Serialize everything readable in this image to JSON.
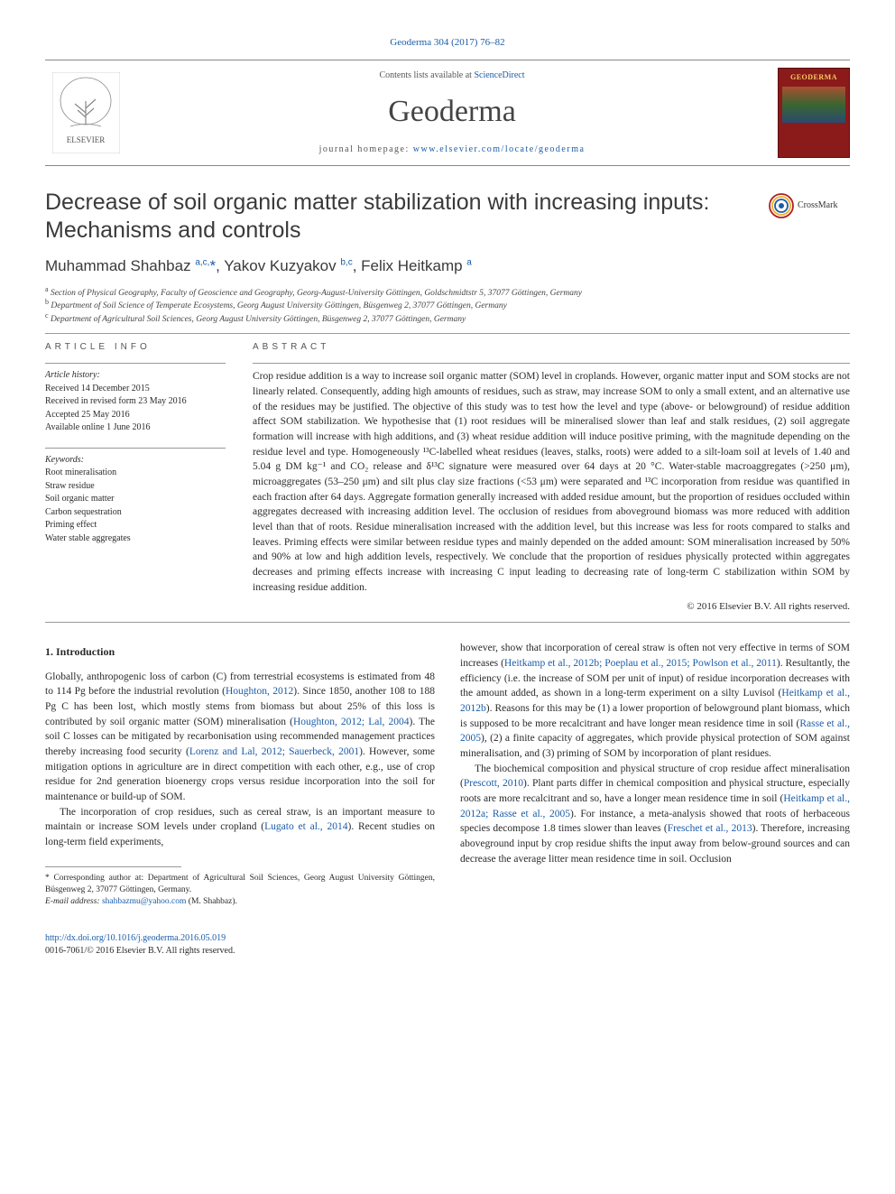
{
  "citation": "Geoderma 304 (2017) 76–82",
  "masthead": {
    "sd_prefix": "Contents lists available at ",
    "sd_link": "ScienceDirect",
    "journal": "Geoderma",
    "homepage_prefix": "journal homepage: ",
    "homepage_link": "www.elsevier.com/locate/geoderma",
    "cover_label": "GEODERMA"
  },
  "crossmark_label": "CrossMark",
  "article": {
    "title": "Decrease of soil organic matter stabilization with increasing inputs: Mechanisms and controls",
    "authors_html": "Muhammad Shahbaz <sup>a,c,</sup><span class='star'>*</span>, Yakov Kuzyakov <sup>b,c</sup>, Felix Heitkamp <sup>a</sup>",
    "affiliations": {
      "a": "Section of Physical Geography, Faculty of Geoscience and Geography, Georg-August-University Göttingen, Goldschmidtstr 5, 37077 Göttingen, Germany",
      "b": "Department of Soil Science of Temperate Ecosystems, Georg August University Göttingen, Büsgenweg 2, 37077 Göttingen, Germany",
      "c": "Department of Agricultural Soil Sciences, Georg August University Göttingen, Büsgenweg 2, 37077 Göttingen, Germany"
    }
  },
  "info": {
    "head": "ARTICLE INFO",
    "history_label": "Article history:",
    "history": [
      "Received 14 December 2015",
      "Received in revised form 23 May 2016",
      "Accepted 25 May 2016",
      "Available online 1 June 2016"
    ],
    "keywords_label": "Keywords:",
    "keywords": [
      "Root mineralisation",
      "Straw residue",
      "Soil organic matter",
      "Carbon sequestration",
      "Priming effect",
      "Water stable aggregates"
    ]
  },
  "abstract": {
    "head": "ABSTRACT",
    "text": "Crop residue addition is a way to increase soil organic matter (SOM) level in croplands. However, organic matter input and SOM stocks are not linearly related. Consequently, adding high amounts of residues, such as straw, may increase SOM to only a small extent, and an alternative use of the residues may be justified. The objective of this study was to test how the level and type (above- or belowground) of residue addition affect SOM stabilization. We hypothesise that (1) root residues will be mineralised slower than leaf and stalk residues, (2) soil aggregate formation will increase with high additions, and (3) wheat residue addition will induce positive priming, with the magnitude depending on the residue level and type. Homogeneously ¹³C-labelled wheat residues (leaves, stalks, roots) were added to a silt-loam soil at levels of 1.40 and 5.04 g DM kg⁻¹ and CO₂ release and δ¹³C signature were measured over 64 days at 20 °C. Water-stable macroaggregates (>250 μm), microaggregates (53–250 μm) and silt plus clay size fractions (<53 μm) were separated and ¹³C incorporation from residue was quantified in each fraction after 64 days. Aggregate formation generally increased with added residue amount, but the proportion of residues occluded within aggregates decreased with increasing addition level. The occlusion of residues from aboveground biomass was more reduced with addition level than that of roots. Residue mineralisation increased with the addition level, but this increase was less for roots compared to stalks and leaves. Priming effects were similar between residue types and mainly depended on the added amount: SOM mineralisation increased by 50% and 90% at low and high addition levels, respectively. We conclude that the proportion of residues physically protected within aggregates decreases and priming effects increase with increasing C input leading to decreasing rate of long-term C stabilization within SOM by increasing residue addition.",
    "copyright": "© 2016 Elsevier B.V. All rights reserved."
  },
  "body": {
    "intro_head": "1. Introduction",
    "left_paras": [
      "Globally, anthropogenic loss of carbon (C) from terrestrial ecosystems is estimated from 48 to 114 Pg before the industrial revolution (<a>Houghton, 2012</a>). Since 1850, another 108 to 188 Pg C has been lost, which mostly stems from biomass but about 25% of this loss is contributed by soil organic matter (SOM) mineralisation (<a>Houghton, 2012; Lal, 2004</a>). The soil C losses can be mitigated by recarbonisation using recommended management practices thereby increasing food security (<a>Lorenz and Lal, 2012; Sauerbeck, 2001</a>). However, some mitigation options in agriculture are in direct competition with each other, e.g., use of crop residue for 2nd generation bioenergy crops versus residue incorporation into the soil for maintenance or build-up of SOM.",
      "The incorporation of crop residues, such as cereal straw, is an important measure to maintain or increase SOM levels under cropland (<a>Lugato et al., 2014</a>). Recent studies on long-term field experiments,"
    ],
    "right_paras": [
      "however, show that incorporation of cereal straw is often not very effective in terms of SOM increases (<a>Heitkamp et al., 2012b; Poeplau et al., 2015; Powlson et al., 2011</a>). Resultantly, the efficiency (i.e. the increase of SOM per unit of input) of residue incorporation decreases with the amount added, as shown in a long-term experiment on a silty Luvisol (<a>Heitkamp et al., 2012b</a>). Reasons for this may be (1) a lower proportion of belowground plant biomass, which is supposed to be more recalcitrant and have longer mean residence time in soil (<a>Rasse et al., 2005</a>), (2) a finite capacity of aggregates, which provide physical protection of SOM against mineralisation, and (3) priming of SOM by incorporation of plant residues.",
      "The biochemical composition and physical structure of crop residue affect mineralisation (<a>Prescott, 2010</a>). Plant parts differ in chemical composition and physical structure, especially roots are more recalcitrant and so, have a longer mean residence time in soil (<a>Heitkamp et al., 2012a; Rasse et al., 2005</a>). For instance, a meta-analysis showed that roots of herbaceous species decompose 1.8 times slower than leaves (<a>Freschet et al., 2013</a>). Therefore, increasing aboveground input by crop residue shifts the input away from below-ground sources and can decrease the average litter mean residence time in soil. Occlusion"
    ]
  },
  "footnotes": {
    "corr": "* Corresponding author at: Department of Agricultural Soil Sciences, Georg August University Göttingen, Büsgenweg 2, 37077 Göttingen, Germany.",
    "email_label": "E-mail address: ",
    "email": "shahbazmu@yahoo.com",
    "email_suffix": " (M. Shahbaz)."
  },
  "footer": {
    "doi": "http://dx.doi.org/10.1016/j.geoderma.2016.05.019",
    "issn": "0016-7061/© 2016 Elsevier B.V. All rights reserved."
  },
  "colors": {
    "link": "#1a5ca8",
    "text": "#2a2a2a",
    "rule": "#999999",
    "elsevier_orange": "#ee7f1a",
    "cover_red": "#8b1a1a",
    "cover_gold": "#f4d060"
  },
  "typography": {
    "body_pt": 11.5,
    "title_pt": 25,
    "authors_pt": 17,
    "journal_pt": 34,
    "info_pt": 10,
    "footnote_pt": 9.5
  }
}
